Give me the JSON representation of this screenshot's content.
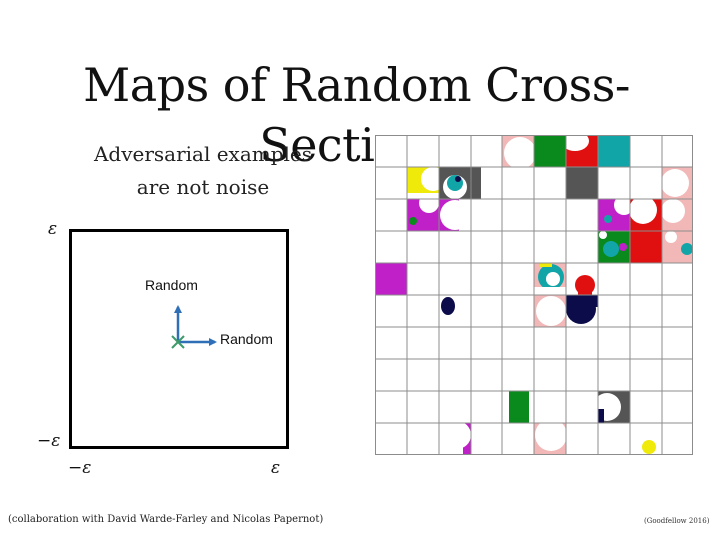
{
  "title": "Maps of Random Cross-Sections",
  "subtitle": {
    "line1": "Adversarial examples",
    "line2": "are not noise"
  },
  "cross_section": {
    "eps_top": "ε",
    "eps_left_bottom": "−ε",
    "eps_bottom_left": "−ε",
    "eps_bottom_right": "ε",
    "arrow_up_label": "Random",
    "arrow_right_label": "Random",
    "arrow_color": "#2e6fb7",
    "origin_marker_color": "#3f9a6a"
  },
  "grid": {
    "rows": 10,
    "cols": 10,
    "line_color": "#8c8c8c",
    "background": "#ffffff"
  },
  "colors": {
    "green": "#0a8a1c",
    "red": "#e01010",
    "teal": "#12a5a8",
    "magenta": "#c020c8",
    "yellow": "#f0ea0a",
    "dark_gray": "#555555",
    "navy": "#0c0c4a",
    "pink": "#f2b8b8"
  },
  "credits": {
    "collaboration": "(collaboration with David Warde-Farley and Nicolas Papernot)",
    "citation": "(Goodfellow 2016)"
  }
}
